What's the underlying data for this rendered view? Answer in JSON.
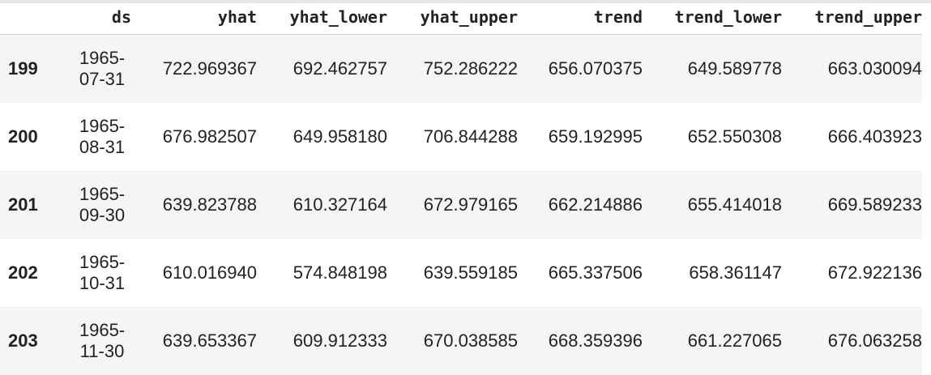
{
  "table": {
    "columns": [
      "ds",
      "yhat",
      "yhat_lower",
      "yhat_upper",
      "trend",
      "trend_lower",
      "trend_upper"
    ],
    "rows": [
      {
        "index": "199",
        "ds_year": "1965-",
        "ds_md": "07-31",
        "yhat": "722.969367",
        "yhat_lower": "692.462757",
        "yhat_upper": "752.286222",
        "trend": "656.070375",
        "trend_lower": "649.589778",
        "trend_upper": "663.030094"
      },
      {
        "index": "200",
        "ds_year": "1965-",
        "ds_md": "08-31",
        "yhat": "676.982507",
        "yhat_lower": "649.958180",
        "yhat_upper": "706.844288",
        "trend": "659.192995",
        "trend_lower": "652.550308",
        "trend_upper": "666.403923"
      },
      {
        "index": "201",
        "ds_year": "1965-",
        "ds_md": "09-30",
        "yhat": "639.823788",
        "yhat_lower": "610.327164",
        "yhat_upper": "672.979165",
        "trend": "662.214886",
        "trend_lower": "655.414018",
        "trend_upper": "669.589233"
      },
      {
        "index": "202",
        "ds_year": "1965-",
        "ds_md": "10-31",
        "yhat": "610.016940",
        "yhat_lower": "574.848198",
        "yhat_upper": "639.559185",
        "trend": "665.337506",
        "trend_lower": "658.361147",
        "trend_upper": "672.922136"
      },
      {
        "index": "203",
        "ds_year": "1965-",
        "ds_md": "11-30",
        "yhat": "639.653367",
        "yhat_lower": "609.912333",
        "yhat_upper": "670.038585",
        "trend": "668.359396",
        "trend_lower": "661.227065",
        "trend_upper": "676.063258"
      }
    ]
  }
}
